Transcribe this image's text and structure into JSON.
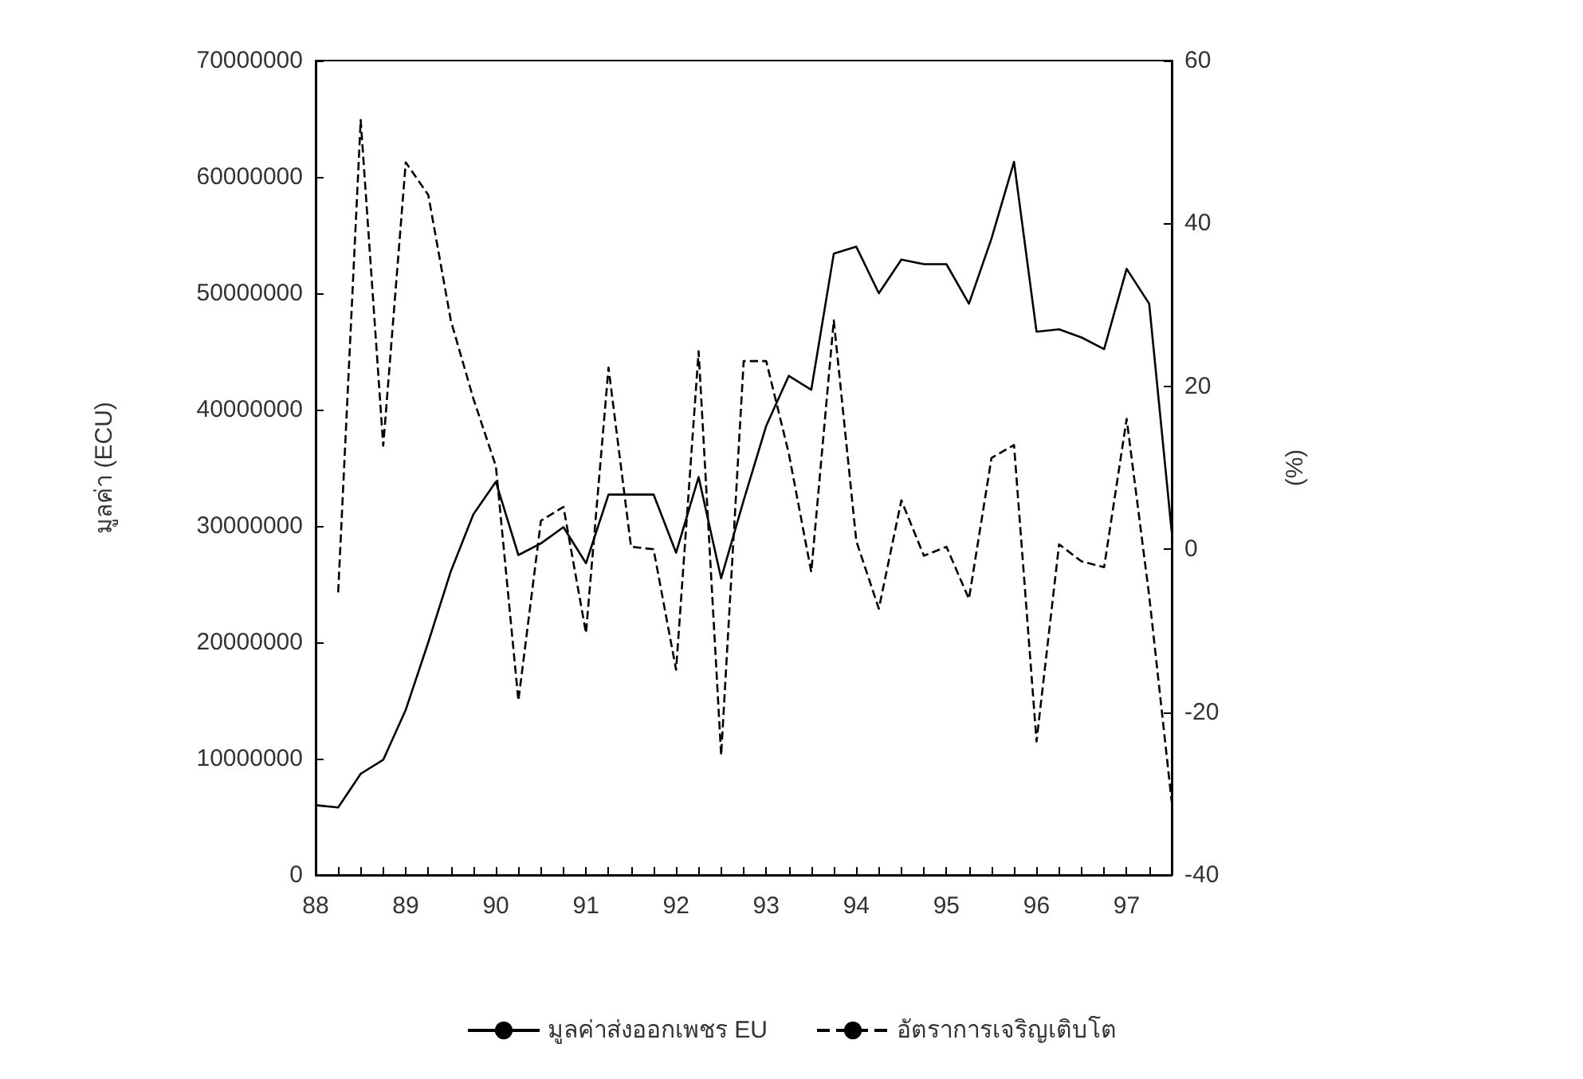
{
  "chart_data": {
    "type": "line",
    "ylabel": "มูลค่า (ECU)",
    "y2label": "(%)",
    "categories": [
      "88",
      null,
      null,
      null,
      "89",
      null,
      null,
      null,
      "90",
      null,
      null,
      null,
      "91",
      null,
      null,
      null,
      "92",
      null,
      null,
      null,
      "93",
      null,
      null,
      null,
      "94",
      null,
      null,
      null,
      "95",
      null,
      null,
      null,
      "96",
      null,
      null,
      null,
      "97",
      null,
      null
    ],
    "series": [
      {
        "name": "มูลค่าส่งออกเพชร EU",
        "color": "#000000",
        "line_style": "solid",
        "values": [
          6000000,
          5800000,
          8700000,
          9900000,
          14200000,
          20000000,
          26100000,
          31000000,
          33800000,
          27500000,
          28500000,
          29900000,
          26800000,
          32700000,
          32700000,
          32700000,
          27700000,
          34200000,
          25500000,
          32200000,
          38600000,
          42900000,
          41700000,
          53400000,
          54000000,
          50000000,
          52900000,
          52500000,
          52500000,
          49100000,
          54700000,
          61300000,
          46700000,
          46900000,
          46200000,
          45200000,
          52100000,
          49100000,
          29500000
        ]
      },
      {
        "name": "อัตราการเจริญเติบโต",
        "color": "#000000",
        "line_style": "dashed",
        "axis": "y2",
        "values": [
          null,
          -5.3,
          52.7,
          12.7,
          47.5,
          43.5,
          28.1,
          18.5,
          10.2,
          -18.6,
          3.5,
          5.2,
          -10.3,
          22.3,
          0.3,
          0,
          -14.8,
          24.3,
          -25.3,
          23.1,
          23.1,
          11.8,
          -2.8,
          28.1,
          1,
          -7.3,
          6,
          -0.8,
          0.3,
          -6.1,
          11.2,
          12.8,
          -23.6,
          0.6,
          -1.5,
          -2.2,
          16,
          -5.7,
          -31
        ]
      }
    ],
    "ylim": [
      0,
      70000000
    ],
    "yticks": [
      0,
      10000000,
      20000000,
      30000000,
      40000000,
      50000000,
      60000000,
      70000000
    ],
    "y2lim": [
      -40,
      60
    ],
    "y2ticks": [
      -40,
      -20,
      0,
      20,
      40,
      60
    ],
    "legend": "bottom"
  }
}
